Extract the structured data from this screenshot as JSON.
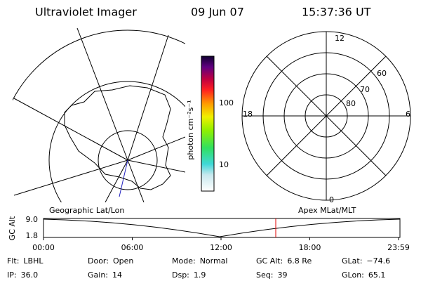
{
  "header": {
    "instrument": "Ultraviolet Imager",
    "date": "09 Jun 07",
    "time": "15:37:36 UT"
  },
  "colorbar": {
    "label": "photon cm⁻²s⁻¹",
    "ticks": [
      "100",
      "10"
    ]
  },
  "polar_plot": {
    "mlt_labels": [
      "12",
      "18",
      "6",
      "0"
    ],
    "lat_labels": [
      "60",
      "70",
      "80"
    ]
  },
  "strip": {
    "left_title": "Geographic Lat/Lon",
    "right_title": "Apex MLat/MLT",
    "y_label": "GC Alt",
    "y_ticks": [
      "9.0",
      "1.8"
    ],
    "x_ticks": [
      "00:00",
      "06:00",
      "12:00",
      "18:00",
      "23:59"
    ]
  },
  "info": [
    [
      {
        "label": "Flt:",
        "value": "LBHL"
      },
      {
        "label": "Door:",
        "value": "Open"
      },
      {
        "label": "Mode:",
        "value": "Normal"
      },
      {
        "label": "GC Alt:",
        "value": "6.8 Re"
      },
      {
        "label": "GLat:",
        "value": "−74.6"
      }
    ],
    [
      {
        "label": "IP:",
        "value": "36.0"
      },
      {
        "label": "Gain:",
        "value": "14"
      },
      {
        "label": "Dsp:",
        "value": "1.9"
      },
      {
        "label": "Seq:",
        "value": "39"
      },
      {
        "label": "GLon:",
        "value": "65.1"
      }
    ]
  ]
}
